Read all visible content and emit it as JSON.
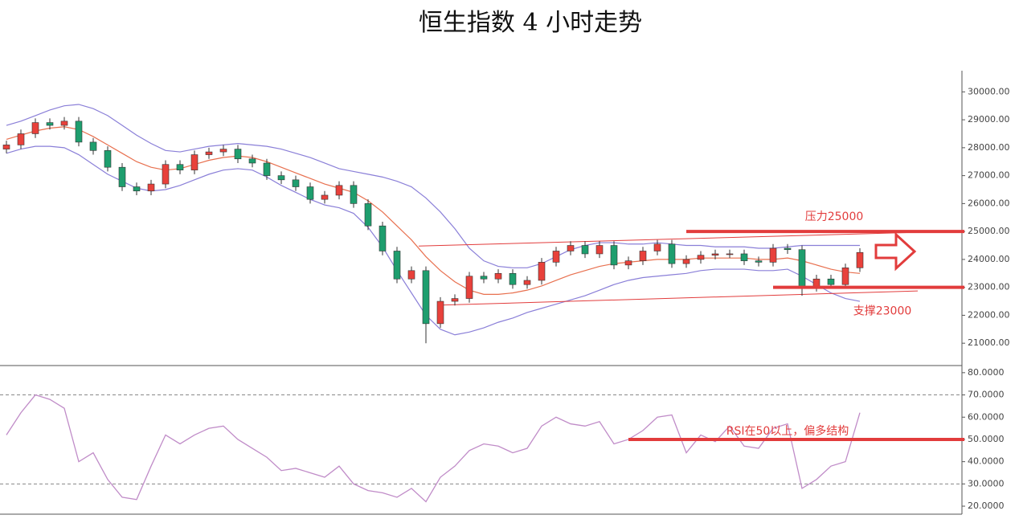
{
  "chart_data": [
    {
      "type": "candlestick",
      "title": "恒生指数 4 小时走势",
      "open": [
        27950,
        28100,
        28500,
        28900,
        28800,
        28950,
        28200,
        27900,
        27300,
        26600,
        26450,
        26700,
        27400,
        27200,
        27750,
        27850,
        27950,
        27600,
        27450,
        27000,
        26850,
        26600,
        26150,
        26300,
        26650,
        26000,
        25200,
        24300,
        23300,
        23600,
        21700,
        22500,
        22600,
        23400,
        23300,
        23500,
        23100,
        23250,
        23900,
        24300,
        24500,
        24200,
        24500,
        23800,
        23950,
        24300,
        24550,
        23850,
        24000,
        24150,
        24200,
        24200,
        23950,
        23900,
        24400,
        24350,
        23000,
        23300,
        23100,
        23700
      ],
      "high": [
        28250,
        28650,
        29050,
        29050,
        29100,
        29100,
        28350,
        28050,
        27450,
        26750,
        26850,
        27550,
        27550,
        27900,
        28000,
        28100,
        28100,
        27750,
        27600,
        27150,
        27000,
        26750,
        26450,
        26800,
        26800,
        26150,
        25350,
        24450,
        23750,
        23750,
        22650,
        22750,
        23550,
        23550,
        23650,
        23650,
        23400,
        24050,
        24450,
        24650,
        24650,
        24650,
        24650,
        24100,
        24450,
        24700,
        24700,
        24150,
        24300,
        24350,
        24350,
        24350,
        24100,
        24550,
        24550,
        24500,
        23450,
        23450,
        23850,
        24400
      ],
      "low": [
        27800,
        27950,
        28350,
        28650,
        28650,
        28050,
        27750,
        27150,
        26450,
        26300,
        26300,
        26550,
        27050,
        27050,
        27600,
        27700,
        27450,
        27300,
        26850,
        26700,
        26450,
        26000,
        26000,
        26150,
        25850,
        25050,
        24150,
        23150,
        23150,
        21000,
        21550,
        22350,
        22450,
        23150,
        23150,
        22950,
        22950,
        23100,
        23750,
        24150,
        24050,
        24050,
        23650,
        23650,
        23800,
        24150,
        23700,
        23700,
        23850,
        24000,
        24050,
        23800,
        23750,
        23750,
        24200,
        22700,
        22850,
        22950,
        22950,
        23550
      ],
      "close": [
        28100,
        28500,
        28900,
        28800,
        28950,
        28200,
        27900,
        27300,
        26600,
        26450,
        26700,
        27400,
        27200,
        27750,
        27850,
        27950,
        27600,
        27450,
        27000,
        26850,
        26600,
        26150,
        26300,
        26650,
        26000,
        25200,
        24300,
        23300,
        23600,
        21700,
        22500,
        22600,
        23400,
        23300,
        23500,
        23100,
        23250,
        23900,
        24300,
        24500,
        24200,
        24500,
        23800,
        23950,
        24300,
        24550,
        23850,
        24000,
        24150,
        24200,
        24200,
        23950,
        23900,
        24400,
        24350,
        23000,
        23300,
        23100,
        23700,
        24250
      ],
      "up_color": "#e8413b",
      "down_color": "#1e9e6e",
      "bands": {
        "upper": [
          28800,
          28950,
          29150,
          29350,
          29500,
          29550,
          29400,
          29150,
          28800,
          28450,
          28150,
          27900,
          27850,
          27950,
          28050,
          28100,
          28150,
          28100,
          28050,
          27950,
          27800,
          27650,
          27450,
          27250,
          27150,
          27050,
          26950,
          26800,
          26600,
          26200,
          25700,
          25100,
          24400,
          23950,
          23750,
          23700,
          23700,
          23850,
          24100,
          24350,
          24500,
          24600,
          24600,
          24550,
          24550,
          24600,
          24550,
          24500,
          24500,
          24450,
          24450,
          24450,
          24400,
          24400,
          24450,
          24500,
          24500,
          24500,
          24500,
          24500
        ],
        "middle": [
          28300,
          28450,
          28600,
          28700,
          28750,
          28650,
          28400,
          28100,
          27800,
          27500,
          27300,
          27200,
          27250,
          27400,
          27550,
          27650,
          27700,
          27650,
          27500,
          27300,
          27100,
          26900,
          26700,
          26550,
          26400,
          26100,
          25700,
          25200,
          24700,
          24100,
          23600,
          23200,
          22900,
          22750,
          22750,
          22800,
          22900,
          23050,
          23250,
          23450,
          23600,
          23750,
          23850,
          23900,
          23950,
          24000,
          24000,
          24000,
          24050,
          24050,
          24050,
          24050,
          24000,
          24000,
          24050,
          23950,
          23800,
          23650,
          23550,
          23500
        ],
        "lower": [
          27800,
          27950,
          28050,
          28050,
          28000,
          27750,
          27400,
          27050,
          26800,
          26550,
          26450,
          26500,
          26650,
          26850,
          27050,
          27200,
          27250,
          27200,
          26950,
          26650,
          26400,
          26150,
          25950,
          25850,
          25650,
          25150,
          24450,
          23600,
          22800,
          22000,
          21500,
          21300,
          21400,
          21550,
          21750,
          21900,
          22100,
          22250,
          22400,
          22550,
          22700,
          22900,
          23100,
          23250,
          23350,
          23400,
          23450,
          23500,
          23600,
          23650,
          23650,
          23650,
          23600,
          23600,
          23650,
          23400,
          23100,
          22800,
          22600,
          22500
        ],
        "band_color": "#8a7fd8",
        "middle_color": "#e8704f"
      },
      "ylim": [
        20200,
        30700
      ],
      "yticks": [
        {
          "value": 21000,
          "label": "21000.00"
        },
        {
          "value": 22000,
          "label": "22000.00"
        },
        {
          "value": 23000,
          "label": "23000.00"
        },
        {
          "value": 24000,
          "label": "24000.00"
        },
        {
          "value": 25000,
          "label": "25000.00"
        },
        {
          "value": 26000,
          "label": "26000.00"
        },
        {
          "value": 27000,
          "label": "27000.00"
        },
        {
          "value": 28000,
          "label": "28000.00"
        },
        {
          "value": 29000,
          "label": "29000.00"
        },
        {
          "value": 30000,
          "label": "30000.00"
        }
      ],
      "levels": [
        {
          "value": 25000,
          "label": "压力25000",
          "start": 47
        },
        {
          "value": 23000,
          "label": "支撑23000",
          "start": 53
        }
      ],
      "trend_lines": [
        {
          "x": [
            28.5,
            63
          ],
          "y": [
            24480,
            24970
          ]
        },
        {
          "x": [
            29.8,
            63
          ],
          "y": [
            22360,
            22870
          ]
        }
      ],
      "level_color": "#e23c3c"
    },
    {
      "type": "line",
      "values": [
        52,
        62,
        70,
        68,
        64,
        40,
        44,
        32,
        24,
        23,
        38,
        52,
        48,
        52,
        55,
        56,
        50,
        46,
        42,
        36,
        37,
        35,
        33,
        38,
        30,
        27,
        26,
        24,
        28,
        22,
        33,
        38,
        45,
        48,
        47,
        44,
        46,
        56,
        60,
        57,
        56,
        58,
        48,
        50,
        54,
        60,
        61,
        44,
        52,
        49,
        56,
        47,
        46,
        55,
        57,
        28,
        32,
        38,
        40,
        62
      ],
      "color": "#c08cc8",
      "ylim": [
        16.4,
        83.2
      ],
      "yticks": [
        {
          "value": 20,
          "label": "20.0000"
        },
        {
          "value": 30,
          "label": "30.0000"
        },
        {
          "value": 40,
          "label": "40.0000"
        },
        {
          "value": 50,
          "label": "50.0000"
        },
        {
          "value": 60,
          "label": "60.0000"
        },
        {
          "value": 70,
          "label": "70.0000"
        },
        {
          "value": 80,
          "label": "80.0000"
        }
      ],
      "guides": [
        30,
        70
      ],
      "levels": [
        {
          "value": 50,
          "label": "RSI在50以上，偏多结构",
          "start": 43
        }
      ],
      "level_color": "#e23c3c"
    }
  ]
}
